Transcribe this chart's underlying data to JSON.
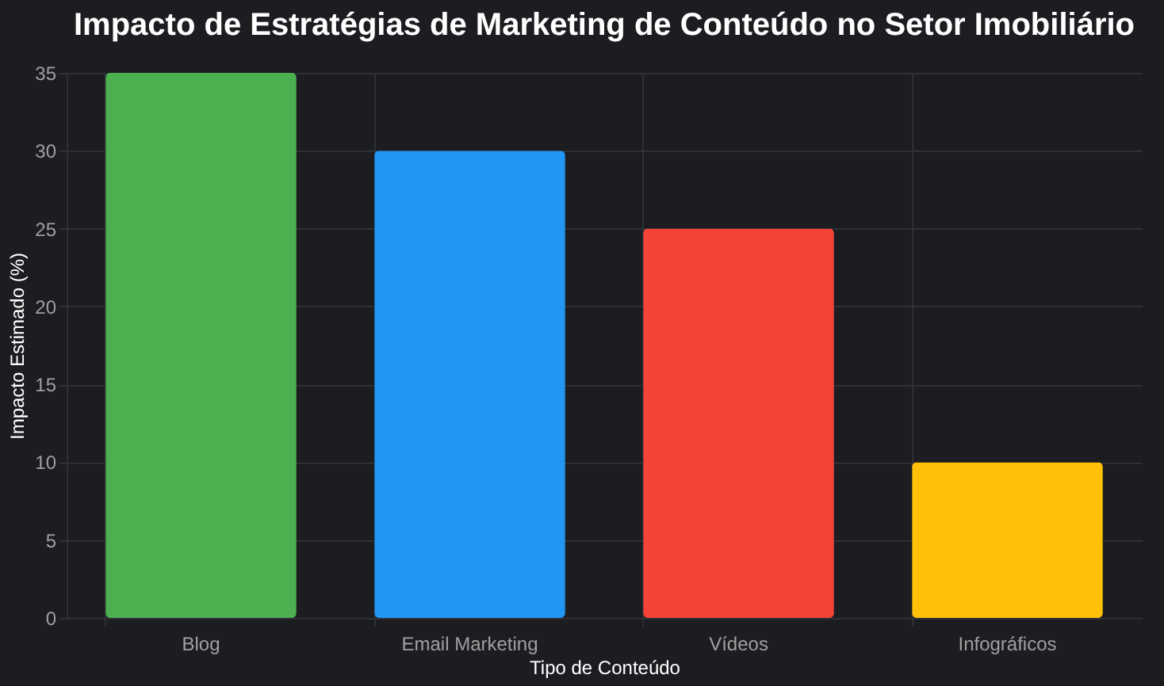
{
  "chart_data": {
    "type": "bar",
    "title": "Impacto de Estratégias de Marketing de Conteúdo no Setor Imobiliário",
    "xlabel": "Tipo de Conteúdo",
    "ylabel": "Impacto Estimado (%)",
    "categories": [
      "Blog",
      "Email Marketing",
      "Vídeos",
      "Infográficos"
    ],
    "values": [
      35,
      30,
      25,
      10
    ],
    "colors": [
      "#4caf50",
      "#2196f3",
      "#f44336",
      "#ffc107"
    ],
    "ylim": [
      0,
      35
    ],
    "yticks": [
      0,
      5,
      10,
      15,
      20,
      25,
      30,
      35
    ],
    "grid": true,
    "legend": false
  }
}
